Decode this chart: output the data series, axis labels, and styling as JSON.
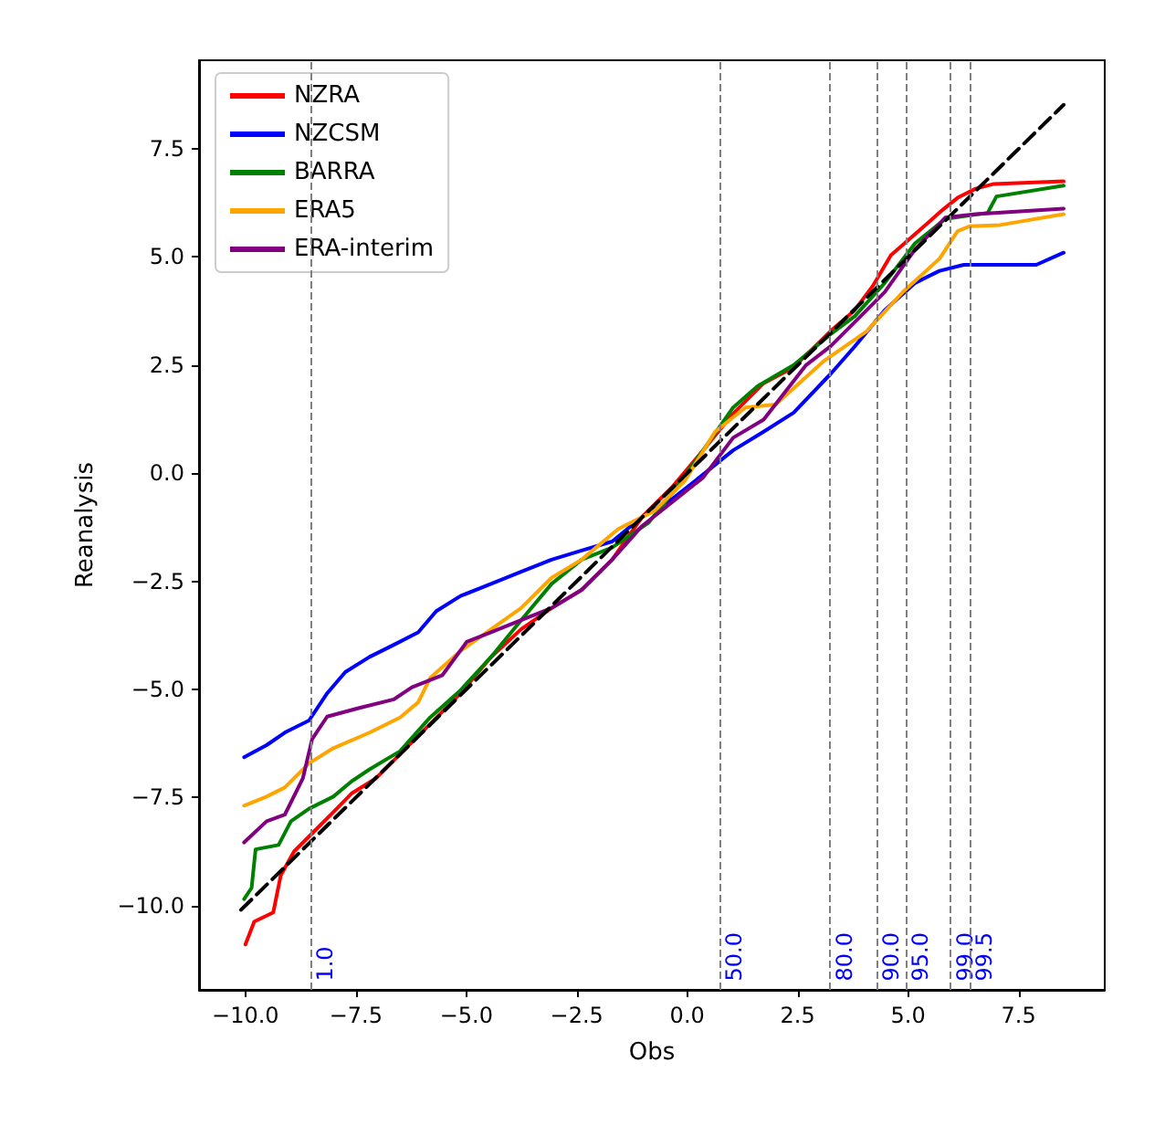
{
  "chart_data": {
    "type": "line",
    "xlabel": "Obs",
    "ylabel": "Reanalysis",
    "xlim": [
      -11.05,
      9.45
    ],
    "ylim": [
      -11.95,
      9.55
    ],
    "xticks": [
      {
        "value": -10,
        "label": "−10.0"
      },
      {
        "value": -7.5,
        "label": "−7.5"
      },
      {
        "value": -5,
        "label": "−5.0"
      },
      {
        "value": -2.5,
        "label": "−2.5"
      },
      {
        "value": 0,
        "label": "0.0"
      },
      {
        "value": 2.5,
        "label": "2.5"
      },
      {
        "value": 5,
        "label": "5.0"
      },
      {
        "value": 7.5,
        "label": "7.5"
      }
    ],
    "yticks": [
      {
        "value": -10,
        "label": "−10.0"
      },
      {
        "value": -7.5,
        "label": "−7.5"
      },
      {
        "value": -5,
        "label": "−5.0"
      },
      {
        "value": -2.5,
        "label": "−2.5"
      },
      {
        "value": 0,
        "label": "0.0"
      },
      {
        "value": 2.5,
        "label": "2.5"
      },
      {
        "value": 5,
        "label": "5.0"
      },
      {
        "value": 7.5,
        "label": "7.5"
      }
    ],
    "grid": false,
    "legend": "top left",
    "marker": "none",
    "ref_lines": [
      {
        "axis": "x",
        "value": -8.53,
        "color": "#808080",
        "line_style": "dashed"
      },
      {
        "axis": "x",
        "value": 0.72,
        "color": "#808080",
        "line_style": "dashed"
      },
      {
        "axis": "x",
        "value": 3.24,
        "color": "#808080",
        "line_style": "dashed"
      },
      {
        "axis": "x",
        "value": 4.29,
        "color": "#808080",
        "line_style": "dashed"
      },
      {
        "axis": "x",
        "value": 4.95,
        "color": "#808080",
        "line_style": "dashed"
      },
      {
        "axis": "x",
        "value": 5.95,
        "color": "#808080",
        "line_style": "dashed"
      },
      {
        "axis": "x",
        "value": 6.39,
        "color": "#808080",
        "line_style": "dashed"
      }
    ],
    "annotations": [
      {
        "text": "1.0",
        "x": -8.53,
        "y": -11.75
      },
      {
        "text": "50.0",
        "x": 0.72,
        "y": -11.75
      },
      {
        "text": "80.0",
        "x": 3.24,
        "y": -11.75
      },
      {
        "text": "90.0",
        "x": 4.29,
        "y": -11.75
      },
      {
        "text": "95.0",
        "x": 4.95,
        "y": -11.75
      },
      {
        "text": "99.0",
        "x": 5.95,
        "y": -11.75
      },
      {
        "text": "99.5",
        "x": 6.39,
        "y": -11.75
      }
    ],
    "series": [
      {
        "name": "NZRA",
        "color": "#ff0000",
        "x": [
          -10.0,
          -9.8,
          -9.37,
          -9.2,
          -8.9,
          -8.42,
          -8.0,
          -7.6,
          -7.05,
          -6.5,
          -5.82,
          -5.13,
          -4.44,
          -3.76,
          -3.07,
          -2.39,
          -1.7,
          -1.02,
          -0.33,
          0.36,
          1.04,
          1.73,
          2.41,
          3.24,
          3.79,
          4.2,
          4.61,
          5.16,
          5.78,
          6.12,
          6.53,
          6.94,
          8.52
        ],
        "values": [
          -10.9,
          -10.37,
          -10.16,
          -9.3,
          -8.75,
          -8.26,
          -7.83,
          -7.41,
          -7.06,
          -6.5,
          -5.8,
          -5.09,
          -4.25,
          -3.61,
          -3.12,
          -2.7,
          -2.0,
          -1.01,
          -0.31,
          0.53,
          1.38,
          2.08,
          2.45,
          3.28,
          3.77,
          4.33,
          5.04,
          5.53,
          6.09,
          6.37,
          6.58,
          6.69,
          6.75
        ]
      },
      {
        "name": "NZCSM",
        "color": "#0000ff",
        "x": [
          -10.03,
          -9.52,
          -9.11,
          -8.56,
          -8.15,
          -7.74,
          -7.19,
          -6.64,
          -6.09,
          -5.68,
          -5.13,
          -4.44,
          -3.76,
          -3.07,
          -2.39,
          -1.7,
          -1.02,
          -0.33,
          0.36,
          1.04,
          1.73,
          2.41,
          3.24,
          3.79,
          4.47,
          5.16,
          5.71,
          6.26,
          7.9,
          8.52
        ],
        "values": [
          -6.57,
          -6.29,
          -6.0,
          -5.72,
          -5.09,
          -4.6,
          -4.25,
          -3.97,
          -3.68,
          -3.19,
          -2.84,
          -2.56,
          -2.28,
          -2.0,
          -1.79,
          -1.58,
          -1.01,
          -0.59,
          -0.03,
          0.53,
          0.96,
          1.4,
          2.29,
          2.93,
          3.77,
          4.4,
          4.68,
          4.82,
          4.82,
          5.1
        ]
      },
      {
        "name": "BARRA",
        "color": "#008000",
        "x": [
          -10.03,
          -9.86,
          -9.77,
          -9.25,
          -8.97,
          -8.56,
          -8.01,
          -7.6,
          -7.19,
          -6.5,
          -5.82,
          -5.13,
          -4.44,
          -3.76,
          -3.07,
          -2.39,
          -1.7,
          -0.88,
          -0.33,
          0.36,
          1.04,
          1.59,
          2.41,
          3.24,
          3.79,
          4.47,
          5.16,
          5.84,
          6.8,
          7.0,
          8.52
        ],
        "values": [
          -9.85,
          -9.59,
          -8.7,
          -8.6,
          -8.05,
          -7.76,
          -7.48,
          -7.13,
          -6.85,
          -6.43,
          -5.65,
          -5.02,
          -4.25,
          -3.4,
          -2.56,
          -2.0,
          -1.72,
          -1.15,
          -0.45,
          0.53,
          1.52,
          2.01,
          2.5,
          3.21,
          3.63,
          4.4,
          5.32,
          5.88,
          6.02,
          6.4,
          6.65
        ]
      },
      {
        "name": "ERA5",
        "color": "#ffa500",
        "x": [
          -10.03,
          -9.52,
          -9.11,
          -8.56,
          -8.01,
          -7.19,
          -6.5,
          -6.09,
          -5.82,
          -5.13,
          -4.44,
          -3.76,
          -3.07,
          -2.39,
          -1.56,
          -0.74,
          -0.05,
          0.63,
          1.32,
          2.0,
          3.1,
          4.06,
          4.88,
          5.71,
          6.12,
          6.39,
          7.08,
          8.52
        ],
        "values": [
          -7.69,
          -7.48,
          -7.27,
          -6.71,
          -6.36,
          -6.0,
          -5.65,
          -5.3,
          -4.74,
          -4.11,
          -3.61,
          -3.12,
          -2.42,
          -2.0,
          -1.29,
          -0.87,
          -0.17,
          0.96,
          1.52,
          1.59,
          2.6,
          3.28,
          4.19,
          4.96,
          5.6,
          5.71,
          5.74,
          5.99
        ]
      },
      {
        "name": "ERA-interim",
        "color": "#800080",
        "x": [
          -10.03,
          -9.52,
          -9.11,
          -8.7,
          -8.49,
          -8.15,
          -7.46,
          -6.64,
          -6.23,
          -5.54,
          -4.99,
          -4.44,
          -3.76,
          -3.07,
          -2.39,
          -1.7,
          -1.02,
          -0.33,
          0.36,
          1.04,
          1.73,
          2.69,
          3.24,
          3.79,
          4.47,
          5.16,
          5.84,
          6.53,
          8.52
        ],
        "values": [
          -8.54,
          -8.05,
          -7.9,
          -7.06,
          -6.15,
          -5.63,
          -5.44,
          -5.23,
          -4.95,
          -4.67,
          -3.9,
          -3.68,
          -3.4,
          -3.12,
          -2.7,
          -2.0,
          -1.22,
          -0.66,
          -0.1,
          0.82,
          1.24,
          2.5,
          2.93,
          3.49,
          4.19,
          5.18,
          5.91,
          5.99,
          6.12
        ]
      },
      {
        "color": "#000000",
        "line_style": "dashed",
        "x": [
          -10.1,
          8.52
        ],
        "values": [
          -10.1,
          8.52
        ]
      }
    ]
  }
}
